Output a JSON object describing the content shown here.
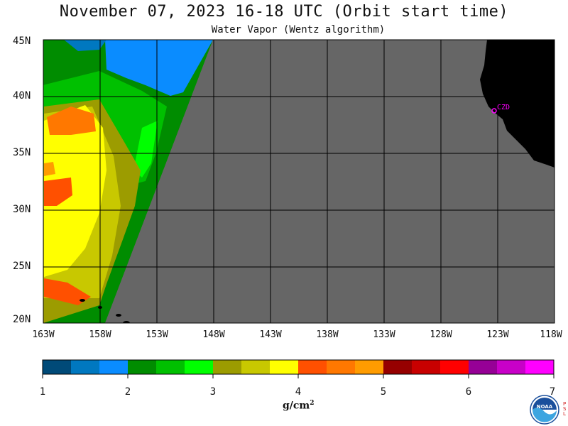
{
  "header": {
    "title": "November 07, 2023  16-18 UTC  (Orbit start time)",
    "subtitle": "Water Vapor (Wentz algorithm)"
  },
  "map": {
    "lat_labels": [
      "45N",
      "40N",
      "35N",
      "30N",
      "25N",
      "20N"
    ],
    "lon_labels": [
      "163W",
      "158W",
      "153W",
      "148W",
      "143W",
      "138W",
      "133W",
      "128W",
      "123W",
      "118W"
    ],
    "station_label": "CZD",
    "colors": {
      "no_data": "#666666",
      "land": "#000000",
      "grid": "#000000",
      "station": "#ff00ff"
    }
  },
  "colorbar": {
    "colors": [
      "#004a78",
      "#0078c0",
      "#0a8cff",
      "#008c00",
      "#00c000",
      "#00ff00",
      "#9c9c00",
      "#c8c800",
      "#ffff00",
      "#ff5000",
      "#ff7800",
      "#ff9c00",
      "#960000",
      "#c80000",
      "#ff0000",
      "#960096",
      "#c800c8",
      "#ff00ff"
    ],
    "tick_labels": [
      "1",
      "2",
      "3",
      "4",
      "5",
      "6",
      "7"
    ],
    "units": "g/cm",
    "units_sup": "2"
  },
  "logos": {
    "noaa_text": "NOAA",
    "psl_text": "PSL"
  }
}
